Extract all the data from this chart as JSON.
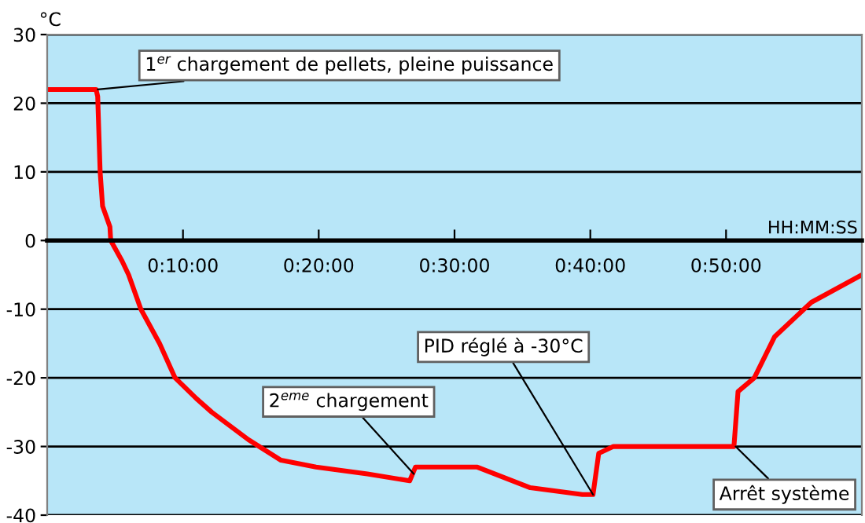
{
  "chart_data": {
    "type": "line",
    "ylabel": "°C",
    "xlabel": "HH:MM:SS",
    "x": [
      0,
      0.06,
      0.062,
      0.065,
      0.068,
      0.077,
      0.078,
      0.092,
      0.1,
      0.115,
      0.138,
      0.157,
      0.183,
      0.202,
      0.247,
      0.287,
      0.33,
      0.393,
      0.445,
      0.452,
      0.465,
      0.528,
      0.593,
      0.657,
      0.67,
      0.677,
      0.695,
      0.772,
      0.843,
      0.848,
      0.858,
      0.868,
      0.893,
      0.938,
      1.0
    ],
    "series": [
      {
        "color": "#ff0000",
        "values": [
          22,
          22,
          21,
          10,
          5,
          2,
          0,
          -3,
          -5,
          -10,
          -15,
          -20,
          -23,
          -25,
          -29,
          -32,
          -33,
          -34,
          -35,
          -33,
          -33,
          -33,
          -36,
          -37,
          -37,
          -31,
          -30,
          -30,
          -30,
          -22,
          -21,
          -20,
          -14,
          -9,
          -5
        ]
      }
    ],
    "xlim": [
      0,
      1.0
    ],
    "ylim": [
      -40,
      30
    ],
    "xticks": [
      {
        "value": 0.1667,
        "label": "0:10:00"
      },
      {
        "value": 0.3333,
        "label": "0:20:00"
      },
      {
        "value": 0.5,
        "label": "0:30:00"
      },
      {
        "value": 0.6667,
        "label": "0:40:00"
      },
      {
        "value": 0.8333,
        "label": "0:50:00"
      }
    ],
    "yticks": [
      -40,
      -30,
      -20,
      -10,
      0,
      10,
      20,
      30
    ],
    "grid": "y",
    "marker": "none",
    "line_style": "solid",
    "annotations": [
      {
        "text": "1$^{er}$ chargement de pellets, pleine puissance",
        "x": 0.062,
        "y": 22
      },
      {
        "text": "2$^{eme}$ chargement",
        "x": 0.45,
        "y": -34
      },
      {
        "text": "PID réglé à -30°C",
        "x": 0.67,
        "y": -37
      },
      {
        "text": "Arrêt système",
        "x": 0.845,
        "y": -30
      }
    ]
  }
}
